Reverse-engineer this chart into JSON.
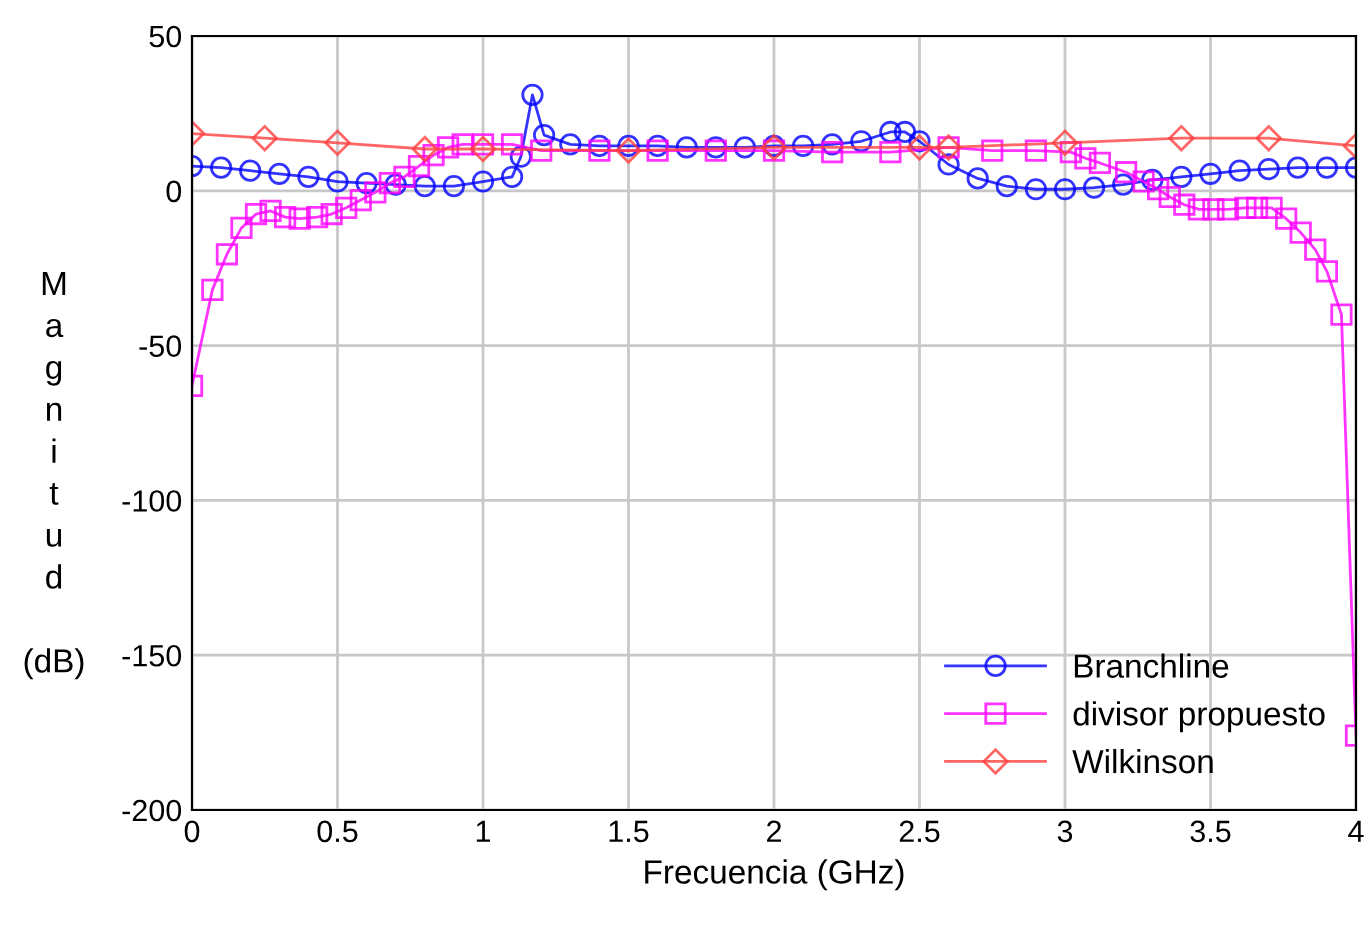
{
  "chart_data": {
    "type": "line",
    "xlabel": "Frecuencia (GHz)",
    "ylabel": "Magnitud (dB)",
    "xlim": [
      0,
      4
    ],
    "ylim": [
      -200,
      50
    ],
    "xticks": [
      0,
      0.5,
      1,
      1.5,
      2,
      2.5,
      3,
      3.5,
      4
    ],
    "yticks": [
      -200,
      -150,
      -100,
      -50,
      0,
      50
    ],
    "grid": true,
    "legend": "bottom right",
    "series": [
      {
        "name": "Branchline",
        "color": "#0000ff",
        "marker": "circle",
        "x": [
          0,
          0.1,
          0.2,
          0.3,
          0.4,
          0.5,
          0.6,
          0.7,
          0.8,
          0.9,
          1.0,
          1.1,
          1.13,
          1.17,
          1.21,
          1.3,
          1.4,
          1.5,
          1.6,
          1.7,
          1.8,
          1.9,
          2.0,
          2.1,
          2.2,
          2.3,
          2.4,
          2.45,
          2.5,
          2.6,
          2.7,
          2.8,
          2.9,
          3.0,
          3.1,
          3.2,
          3.3,
          3.4,
          3.5,
          3.6,
          3.7,
          3.8,
          3.9,
          4.0
        ],
        "values": [
          8,
          7.5,
          6.5,
          5.5,
          4.5,
          3,
          2.5,
          2,
          1.5,
          1.5,
          3,
          4.5,
          11,
          31,
          18,
          15,
          14.5,
          14.5,
          14.5,
          14,
          14,
          14,
          14.5,
          14.5,
          15,
          16,
          19,
          19,
          16,
          8.5,
          4,
          1.5,
          0.5,
          0.5,
          1,
          2,
          3.5,
          4.5,
          5.5,
          6.5,
          7,
          7.5,
          7.5,
          7.5
        ]
      },
      {
        "name": "divisor propuesto",
        "color": "#ff00ff",
        "marker": "square",
        "x": [
          0,
          0.07,
          0.12,
          0.17,
          0.22,
          0.27,
          0.32,
          0.37,
          0.43,
          0.48,
          0.53,
          0.58,
          0.63,
          0.68,
          0.73,
          0.78,
          0.83,
          0.88,
          0.93,
          1.0,
          1.1,
          1.2,
          1.4,
          1.6,
          1.8,
          2.0,
          2.2,
          2.4,
          2.6,
          2.75,
          2.9,
          3.02,
          3.07,
          3.12,
          3.21,
          3.27,
          3.32,
          3.36,
          3.41,
          3.46,
          3.51,
          3.56,
          3.62,
          3.66,
          3.71,
          3.76,
          3.81,
          3.86,
          3.9,
          3.95,
          4.0
        ],
        "values": [
          -63,
          -32,
          -20.5,
          -12,
          -7.5,
          -6.5,
          -8.5,
          -9,
          -8.5,
          -7.5,
          -5.5,
          -3,
          -0.5,
          2.5,
          4.5,
          8,
          11.5,
          14,
          15,
          15,
          15,
          13,
          13,
          13,
          13,
          13,
          12.5,
          12.5,
          14,
          13,
          13,
          12.5,
          10.5,
          9,
          6,
          3,
          0.5,
          -2,
          -4.5,
          -6,
          -6,
          -6,
          -5.5,
          -5.5,
          -5.5,
          -9,
          -13.5,
          -19,
          -26,
          -40,
          -176
        ]
      },
      {
        "name": "Wilkinson",
        "color": "#ff4040",
        "marker": "diamond",
        "x": [
          0,
          0.25,
          0.5,
          0.8,
          1.0,
          1.5,
          2.0,
          2.5,
          2.6,
          3.0,
          3.4,
          3.7,
          4.0
        ],
        "values": [
          18.5,
          17,
          15.5,
          13.5,
          13.5,
          13,
          14,
          14,
          14,
          15.5,
          17,
          17,
          14.5
        ]
      }
    ]
  }
}
